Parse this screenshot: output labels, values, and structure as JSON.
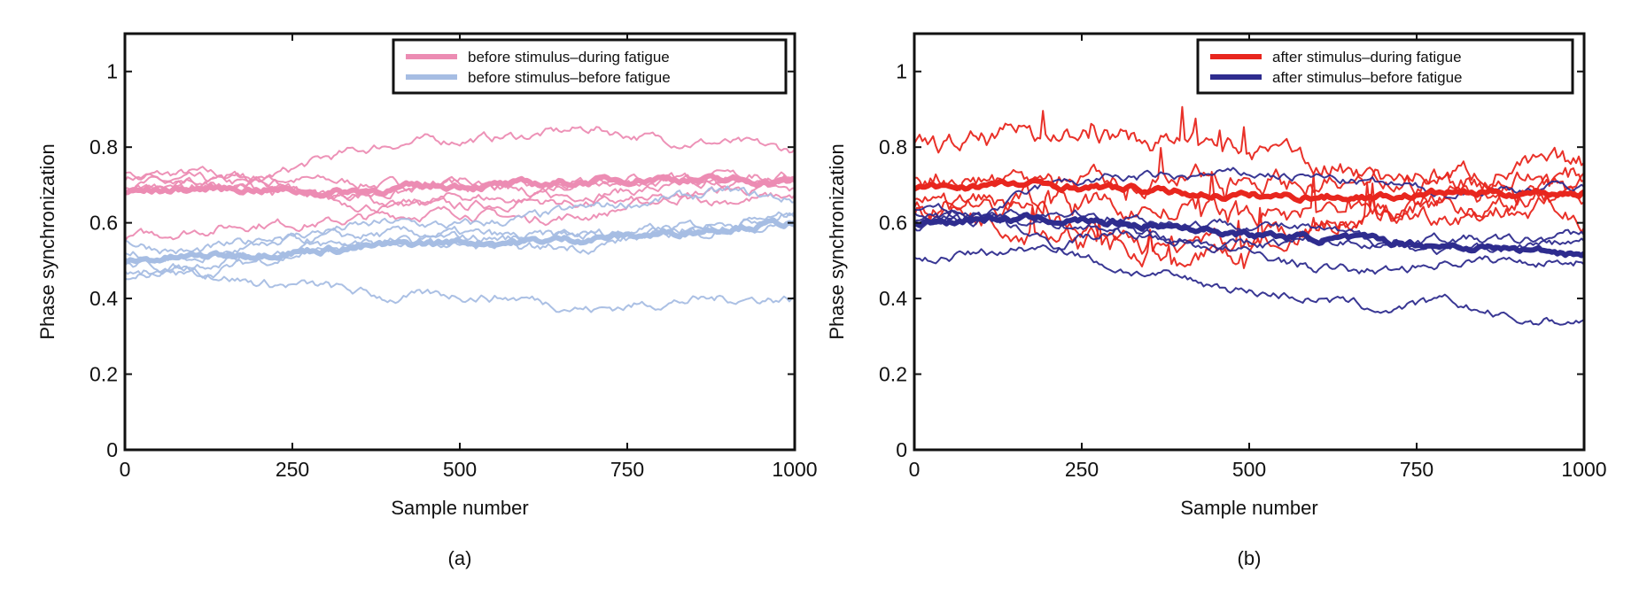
{
  "chart_data": [
    {
      "type": "line",
      "panel_label": "(a)",
      "xlabel": "Sample number",
      "ylabel": "Phase synchronization",
      "xlim": [
        0,
        1000
      ],
      "ylim": [
        0,
        1.1
      ],
      "xticks": [
        "0",
        "250",
        "500",
        "750",
        "1000"
      ],
      "yticks": [
        "0",
        "0.2",
        "0.4",
        "0.6",
        "0.8",
        "1"
      ],
      "legend_position": "top-right",
      "x": [
        0,
        100,
        200,
        300,
        400,
        500,
        600,
        700,
        800,
        900,
        1000
      ],
      "series": [
        {
          "name": "before stimulus–during fatigue",
          "color": "#ec8cb3",
          "legend": true,
          "thick": true,
          "values": [
            0.68,
            0.69,
            0.69,
            0.68,
            0.69,
            0.7,
            0.7,
            0.71,
            0.72,
            0.71,
            0.71
          ]
        },
        {
          "name": "before stimulus–before fatigue",
          "color": "#a6bde3",
          "legend": true,
          "thick": true,
          "values": [
            0.5,
            0.51,
            0.52,
            0.53,
            0.54,
            0.55,
            0.55,
            0.56,
            0.57,
            0.59,
            0.6
          ]
        },
        {
          "group": "before stimulus–during fatigue",
          "color": "#ec8cb3",
          "values": [
            0.72,
            0.73,
            0.72,
            0.71,
            0.7,
            0.71,
            0.69,
            0.7,
            0.71,
            0.72,
            0.72
          ]
        },
        {
          "group": "before stimulus–during fatigue",
          "color": "#ec8cb3",
          "values": [
            0.7,
            0.71,
            0.7,
            0.68,
            0.65,
            0.64,
            0.66,
            0.68,
            0.69,
            0.7,
            0.71
          ]
        },
        {
          "group": "before stimulus–during fatigue",
          "color": "#ec8cb3",
          "values": [
            0.73,
            0.72,
            0.71,
            0.77,
            0.81,
            0.82,
            0.83,
            0.85,
            0.82,
            0.81,
            0.79
          ]
        },
        {
          "group": "before stimulus–during fatigue",
          "color": "#ec8cb3",
          "values": [
            0.56,
            0.58,
            0.6,
            0.6,
            0.62,
            0.63,
            0.61,
            0.62,
            0.66,
            0.69,
            0.68
          ]
        },
        {
          "group": "before stimulus–during fatigue",
          "color": "#ec8cb3",
          "values": [
            0.69,
            0.7,
            0.69,
            0.66,
            0.64,
            0.67,
            0.66,
            0.65,
            0.66,
            0.66,
            0.67
          ]
        },
        {
          "group": "before stimulus–during fatigue",
          "color": "#ec8cb3",
          "values": [
            0.68,
            0.7,
            0.71,
            0.67,
            0.68,
            0.7,
            0.68,
            0.72,
            0.72,
            0.72,
            0.72
          ]
        },
        {
          "group": "before stimulus–before fatigue",
          "color": "#a6bde3",
          "values": [
            0.55,
            0.52,
            0.55,
            0.58,
            0.6,
            0.59,
            0.61,
            0.64,
            0.66,
            0.68,
            0.66
          ]
        },
        {
          "group": "before stimulus–before fatigue",
          "color": "#a6bde3",
          "values": [
            0.47,
            0.46,
            0.5,
            0.53,
            0.54,
            0.56,
            0.56,
            0.57,
            0.58,
            0.6,
            0.63
          ]
        },
        {
          "group": "before stimulus–before fatigue",
          "color": "#a6bde3",
          "values": [
            0.49,
            0.48,
            0.44,
            0.43,
            0.4,
            0.41,
            0.4,
            0.37,
            0.39,
            0.4,
            0.4
          ]
        },
        {
          "group": "before stimulus–before fatigue",
          "color": "#a6bde3",
          "values": [
            0.52,
            0.5,
            0.54,
            0.56,
            0.57,
            0.57,
            0.56,
            0.57,
            0.58,
            0.6,
            0.62
          ]
        },
        {
          "group": "before stimulus–before fatigue",
          "color": "#a6bde3",
          "values": [
            0.46,
            0.49,
            0.52,
            0.54,
            0.55,
            0.54,
            0.53,
            0.54,
            0.57,
            0.58,
            0.59
          ]
        }
      ]
    },
    {
      "type": "line",
      "panel_label": "(b)",
      "xlabel": "Sample number",
      "ylabel": "Phase synchronization",
      "xlim": [
        0,
        1000
      ],
      "ylim": [
        0,
        1.1
      ],
      "xticks": [
        "0",
        "250",
        "500",
        "750",
        "1000"
      ],
      "yticks": [
        "0",
        "0.2",
        "0.4",
        "0.6",
        "0.8",
        "1"
      ],
      "legend_position": "top-right",
      "x": [
        0,
        100,
        200,
        300,
        400,
        500,
        600,
        700,
        800,
        900,
        1000
      ],
      "series": [
        {
          "name": "after stimulus–during fatigue",
          "color": "#e8261e",
          "legend": true,
          "thick": true,
          "values": [
            0.69,
            0.7,
            0.7,
            0.69,
            0.68,
            0.67,
            0.67,
            0.67,
            0.68,
            0.68,
            0.68
          ]
        },
        {
          "name": "after stimulus–before fatigue",
          "color": "#2e2c8e",
          "legend": true,
          "thick": true,
          "values": [
            0.6,
            0.61,
            0.61,
            0.6,
            0.59,
            0.57,
            0.56,
            0.55,
            0.54,
            0.53,
            0.52
          ]
        },
        {
          "group": "after stimulus–during fatigue",
          "color": "#e8261e",
          "values": [
            0.79,
            0.81,
            0.84,
            0.82,
            0.81,
            0.79,
            0.76,
            0.72,
            0.73,
            0.74,
            0.75
          ]
        },
        {
          "group": "after stimulus–during fatigue",
          "color": "#e8261e",
          "values": [
            0.73,
            0.72,
            0.72,
            0.7,
            0.71,
            0.73,
            0.7,
            0.7,
            0.71,
            0.72,
            0.72
          ]
        },
        {
          "group": "after stimulus–during fatigue",
          "color": "#e8261e",
          "values": [
            0.65,
            0.62,
            0.58,
            0.55,
            0.52,
            0.54,
            0.6,
            0.62,
            0.65,
            0.66,
            0.64
          ]
        },
        {
          "group": "after stimulus–during fatigue",
          "color": "#e8261e",
          "values": [
            0.63,
            0.66,
            0.66,
            0.64,
            0.63,
            0.62,
            0.63,
            0.62,
            0.63,
            0.64,
            0.62
          ]
        },
        {
          "group": "after stimulus–during fatigue",
          "color": "#e8261e",
          "values": [
            0.67,
            0.65,
            0.6,
            0.55,
            0.5,
            0.52,
            0.58,
            0.63,
            0.66,
            0.67,
            0.69
          ]
        },
        {
          "group": "after stimulus–before fatigue",
          "color": "#2e2c8e",
          "values": [
            0.6,
            0.62,
            0.7,
            0.72,
            0.72,
            0.73,
            0.72,
            0.7,
            0.68,
            0.69,
            0.7
          ]
        },
        {
          "group": "after stimulus–before fatigue",
          "color": "#2e2c8e",
          "values": [
            0.5,
            0.52,
            0.54,
            0.58,
            0.56,
            0.54,
            0.55,
            0.55,
            0.56,
            0.55,
            0.57
          ]
        },
        {
          "group": "after stimulus–before fatigue",
          "color": "#2e2c8e",
          "values": [
            0.62,
            0.62,
            0.55,
            0.48,
            0.45,
            0.42,
            0.4,
            0.37,
            0.39,
            0.34,
            0.34
          ]
        },
        {
          "group": "after stimulus–before fatigue",
          "color": "#2e2c8e",
          "values": [
            0.64,
            0.62,
            0.6,
            0.58,
            0.55,
            0.52,
            0.48,
            0.47,
            0.5,
            0.5,
            0.5
          ]
        },
        {
          "group": "after stimulus–before fatigue",
          "color": "#2e2c8e",
          "values": [
            0.59,
            0.61,
            0.63,
            0.62,
            0.6,
            0.6,
            0.58,
            0.55,
            0.52,
            0.54,
            0.55
          ]
        }
      ]
    }
  ]
}
